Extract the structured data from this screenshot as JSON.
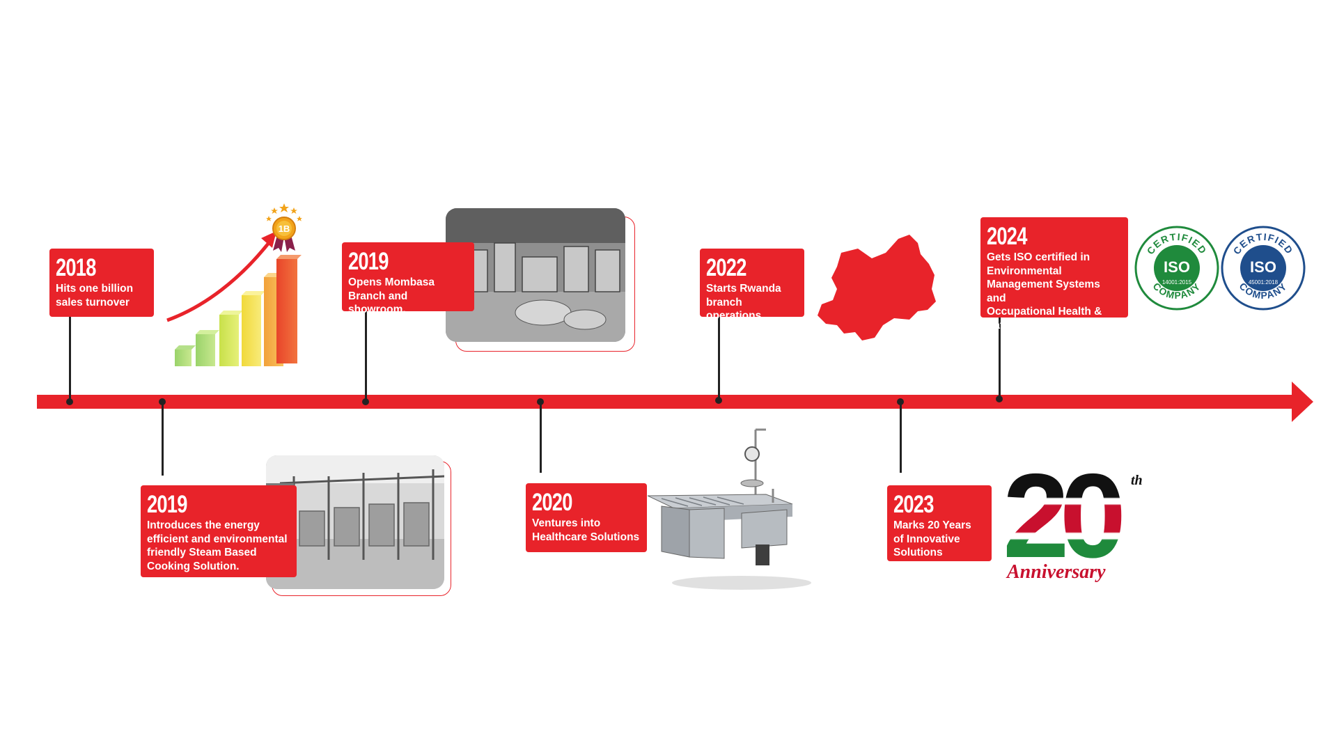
{
  "colors": {
    "accent": "#e8232a",
    "stem": "#222222",
    "iso_green": "#1f8a3c",
    "iso_blue": "#1f4e8c"
  },
  "milestones": [
    {
      "year": "2018",
      "text": "Hits one billion\nsales turnover"
    },
    {
      "year": "2019",
      "text": "Introduces the energy\nefficient and environmental\nfriendly Steam Based\nCooking Solution."
    },
    {
      "year": "2019",
      "text": "Opens Mombasa\nBranch and showroom."
    },
    {
      "year": "2020",
      "text": "Ventures into\nHealthcare Solutions"
    },
    {
      "year": "2022",
      "text": "Starts Rwanda\nbranch operations"
    },
    {
      "year": "2023",
      "text": "Marks 20 Years\nof Innovative\nSolutions"
    },
    {
      "year": "2024",
      "text": "Gets ISO certified in\nEnvironmental\nManagement Systems and\nOccupational Health &\nSafety Systems."
    }
  ],
  "icons": {
    "growth": "growth-chart-icon",
    "medal": "billion-medal-icon",
    "map": "rwanda-map-icon",
    "anniversary": "twentieth-anniversary-logo"
  },
  "badges": [
    {
      "top": "CERTIFIED",
      "center": "ISO",
      "code": "14001:2015",
      "bottom": "COMPANY"
    },
    {
      "top": "CERTIFIED",
      "center": "ISO",
      "code": "45001:2018",
      "bottom": "COMPANY"
    }
  ],
  "medal_text": "1B",
  "anniversary": {
    "number": "20",
    "suffix": "th",
    "word": "Anniversary"
  }
}
